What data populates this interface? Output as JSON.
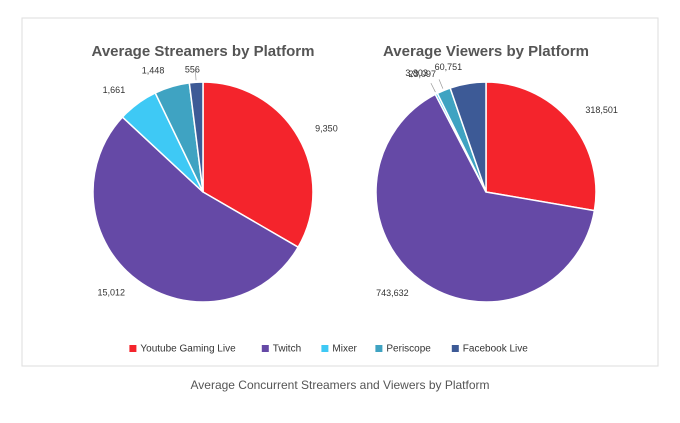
{
  "chart_data": [
    {
      "type": "pie",
      "title": "Average Streamers by Platform",
      "categories": [
        "Youtube Gaming Live",
        "Twitch",
        "Mixer",
        "Periscope",
        "Facebook Live"
      ],
      "values": [
        9350,
        15012,
        1661,
        1448,
        556
      ],
      "value_labels": [
        "9,350",
        "15,012",
        "1,661",
        "1,448",
        "556"
      ],
      "colors": [
        "#f4242c",
        "#6549a6",
        "#3ec9f5",
        "#3fa3c2",
        "#3d5a96"
      ]
    },
    {
      "type": "pie",
      "title": "Average Viewers by Platform",
      "categories": [
        "Youtube Gaming Live",
        "Twitch",
        "Mixer",
        "Periscope",
        "Facebook Live"
      ],
      "values": [
        318501,
        743632,
        3803,
        23097,
        60751
      ],
      "value_labels": [
        "318,501",
        "743,632",
        "3,803",
        "23,097",
        "60,751"
      ],
      "colors": [
        "#f4242c",
        "#6549a6",
        "#3ec9f5",
        "#3fa3c2",
        "#3d5a96"
      ]
    }
  ],
  "caption": "Average Concurrent Streamers and Viewers by Platform"
}
